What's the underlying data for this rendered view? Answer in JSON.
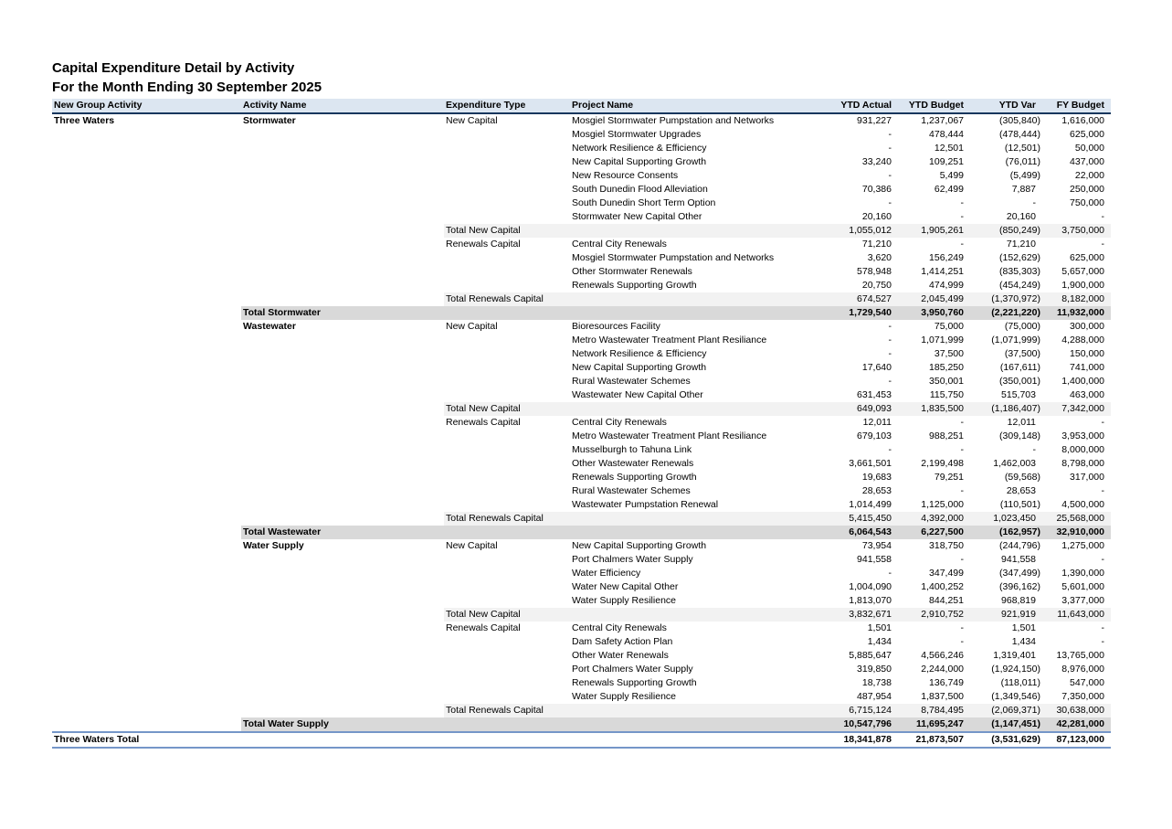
{
  "report": {
    "title": "Capital Expenditure Detail by Activity",
    "subtitle": "For the Month Ending 30 September 2025"
  },
  "colors": {
    "header_bg": "#dce6f1",
    "header_border": "#17365d",
    "subtotal_bg": "#f2f2f2",
    "activity_total_bg": "#d9d9d9",
    "grand_total_border": "#7596c8"
  },
  "table": {
    "columns": [
      {
        "key": "group-activity",
        "label": "New Group Activity",
        "align": "left"
      },
      {
        "key": "activity-name",
        "label": "Activity Name",
        "align": "left"
      },
      {
        "key": "expenditure-type",
        "label": "Expenditure Type",
        "align": "left"
      },
      {
        "key": "project-name",
        "label": "Project Name",
        "align": "left"
      },
      {
        "key": "ytd-actual",
        "label": "YTD Actual",
        "align": "right"
      },
      {
        "key": "ytd-budget",
        "label": "YTD Budget",
        "align": "right"
      },
      {
        "key": "ytd-var",
        "label": "YTD Var",
        "align": "right"
      },
      {
        "key": "fy-budget",
        "label": "FY Budget",
        "align": "right"
      }
    ],
    "rows": [
      {
        "type": "detail",
        "cells": [
          "Three Waters",
          "Stormwater",
          "New Capital",
          "Mosgiel Stormwater Pumpstation and Networks",
          "931,227",
          "1,237,067",
          "(305,840)",
          "1,616,000"
        ]
      },
      {
        "type": "detail",
        "cells": [
          "",
          "",
          "",
          "Mosgiel Stormwater Upgrades",
          "-",
          "478,444",
          "(478,444)",
          "625,000"
        ]
      },
      {
        "type": "detail",
        "cells": [
          "",
          "",
          "",
          "Network Resilience & Efficiency",
          "-",
          "12,501",
          "(12,501)",
          "50,000"
        ]
      },
      {
        "type": "detail",
        "cells": [
          "",
          "",
          "",
          "New Capital Supporting Growth",
          "33,240",
          "109,251",
          "(76,011)",
          "437,000"
        ]
      },
      {
        "type": "detail",
        "cells": [
          "",
          "",
          "",
          "New Resource Consents",
          "-",
          "5,499",
          "(5,499)",
          "22,000"
        ]
      },
      {
        "type": "detail",
        "cells": [
          "",
          "",
          "",
          "South Dunedin Flood Alleviation",
          "70,386",
          "62,499",
          "7,887",
          "250,000"
        ]
      },
      {
        "type": "detail",
        "cells": [
          "",
          "",
          "",
          "South Dunedin Short Term Option",
          "-",
          "-",
          "-",
          "750,000"
        ]
      },
      {
        "type": "detail",
        "cells": [
          "",
          "",
          "",
          "Stormwater New Capital Other",
          "20,160",
          "-",
          "20,160",
          "-"
        ]
      },
      {
        "type": "subtotal",
        "cells": [
          "",
          "",
          "Total New Capital",
          "",
          "1,055,012",
          "1,905,261",
          "(850,249)",
          "3,750,000"
        ]
      },
      {
        "type": "detail",
        "cells": [
          "",
          "",
          "Renewals Capital",
          "Central City Renewals",
          "71,210",
          "-",
          "71,210",
          "-"
        ]
      },
      {
        "type": "detail",
        "cells": [
          "",
          "",
          "",
          "Mosgiel Stormwater Pumpstation and Networks",
          "3,620",
          "156,249",
          "(152,629)",
          "625,000"
        ]
      },
      {
        "type": "detail",
        "cells": [
          "",
          "",
          "",
          "Other Stormwater Renewals",
          "578,948",
          "1,414,251",
          "(835,303)",
          "5,657,000"
        ]
      },
      {
        "type": "detail",
        "cells": [
          "",
          "",
          "",
          "Renewals Supporting Growth",
          "20,750",
          "474,999",
          "(454,249)",
          "1,900,000"
        ]
      },
      {
        "type": "subtotal",
        "cells": [
          "",
          "",
          "Total Renewals Capital",
          "",
          "674,527",
          "2,045,499",
          "(1,370,972)",
          "8,182,000"
        ]
      },
      {
        "type": "activity_total",
        "cells": [
          "",
          "Total Stormwater",
          "",
          "",
          "1,729,540",
          "3,950,760",
          "(2,221,220)",
          "11,932,000"
        ]
      },
      {
        "type": "detail",
        "cells": [
          "",
          "Wastewater",
          "New Capital",
          "Bioresources Facility",
          "-",
          "75,000",
          "(75,000)",
          "300,000"
        ]
      },
      {
        "type": "detail",
        "cells": [
          "",
          "",
          "",
          "Metro Wastewater Treatment Plant Resiliance",
          "-",
          "1,071,999",
          "(1,071,999)",
          "4,288,000"
        ]
      },
      {
        "type": "detail",
        "cells": [
          "",
          "",
          "",
          "Network Resilience & Efficiency",
          "-",
          "37,500",
          "(37,500)",
          "150,000"
        ]
      },
      {
        "type": "detail",
        "cells": [
          "",
          "",
          "",
          "New Capital Supporting Growth",
          "17,640",
          "185,250",
          "(167,611)",
          "741,000"
        ]
      },
      {
        "type": "detail",
        "cells": [
          "",
          "",
          "",
          "Rural Wastewater Schemes",
          "-",
          "350,001",
          "(350,001)",
          "1,400,000"
        ]
      },
      {
        "type": "detail",
        "cells": [
          "",
          "",
          "",
          "Wastewater New Capital Other",
          "631,453",
          "115,750",
          "515,703",
          "463,000"
        ]
      },
      {
        "type": "subtotal",
        "cells": [
          "",
          "",
          "Total New Capital",
          "",
          "649,093",
          "1,835,500",
          "(1,186,407)",
          "7,342,000"
        ]
      },
      {
        "type": "detail",
        "cells": [
          "",
          "",
          "Renewals Capital",
          "Central City Renewals",
          "12,011",
          "-",
          "12,011",
          "-"
        ]
      },
      {
        "type": "detail",
        "cells": [
          "",
          "",
          "",
          "Metro Wastewater Treatment Plant Resiliance",
          "679,103",
          "988,251",
          "(309,148)",
          "3,953,000"
        ]
      },
      {
        "type": "detail",
        "cells": [
          "",
          "",
          "",
          "Musselburgh to Tahuna Link",
          "-",
          "-",
          "-",
          "8,000,000"
        ]
      },
      {
        "type": "detail",
        "cells": [
          "",
          "",
          "",
          "Other Wastewater Renewals",
          "3,661,501",
          "2,199,498",
          "1,462,003",
          "8,798,000"
        ]
      },
      {
        "type": "detail",
        "cells": [
          "",
          "",
          "",
          "Renewals Supporting Growth",
          "19,683",
          "79,251",
          "(59,568)",
          "317,000"
        ]
      },
      {
        "type": "detail",
        "cells": [
          "",
          "",
          "",
          "Rural Wastewater Schemes",
          "28,653",
          "-",
          "28,653",
          "-"
        ]
      },
      {
        "type": "detail",
        "cells": [
          "",
          "",
          "",
          "Wastewater Pumpstation Renewal",
          "1,014,499",
          "1,125,000",
          "(110,501)",
          "4,500,000"
        ]
      },
      {
        "type": "subtotal",
        "cells": [
          "",
          "",
          "Total Renewals Capital",
          "",
          "5,415,450",
          "4,392,000",
          "1,023,450",
          "25,568,000"
        ]
      },
      {
        "type": "activity_total",
        "cells": [
          "",
          "Total Wastewater",
          "",
          "",
          "6,064,543",
          "6,227,500",
          "(162,957)",
          "32,910,000"
        ]
      },
      {
        "type": "detail",
        "cells": [
          "",
          "Water Supply",
          "New Capital",
          "New Capital Supporting Growth",
          "73,954",
          "318,750",
          "(244,796)",
          "1,275,000"
        ]
      },
      {
        "type": "detail",
        "cells": [
          "",
          "",
          "",
          "Port Chalmers Water Supply",
          "941,558",
          "-",
          "941,558",
          "-"
        ]
      },
      {
        "type": "detail",
        "cells": [
          "",
          "",
          "",
          "Water Efficiency",
          "-",
          "347,499",
          "(347,499)",
          "1,390,000"
        ]
      },
      {
        "type": "detail",
        "cells": [
          "",
          "",
          "",
          "Water New Capital Other",
          "1,004,090",
          "1,400,252",
          "(396,162)",
          "5,601,000"
        ]
      },
      {
        "type": "detail",
        "cells": [
          "",
          "",
          "",
          "Water Supply Resilience",
          "1,813,070",
          "844,251",
          "968,819",
          "3,377,000"
        ]
      },
      {
        "type": "subtotal",
        "cells": [
          "",
          "",
          "Total New Capital",
          "",
          "3,832,671",
          "2,910,752",
          "921,919",
          "11,643,000"
        ]
      },
      {
        "type": "detail",
        "cells": [
          "",
          "",
          "Renewals Capital",
          "Central City Renewals",
          "1,501",
          "-",
          "1,501",
          "-"
        ]
      },
      {
        "type": "detail",
        "cells": [
          "",
          "",
          "",
          "Dam Safety Action Plan",
          "1,434",
          "-",
          "1,434",
          "-"
        ]
      },
      {
        "type": "detail",
        "cells": [
          "",
          "",
          "",
          "Other Water Renewals",
          "5,885,647",
          "4,566,246",
          "1,319,401",
          "13,765,000"
        ]
      },
      {
        "type": "detail",
        "cells": [
          "",
          "",
          "",
          "Port Chalmers Water Supply",
          "319,850",
          "2,244,000",
          "(1,924,150)",
          "8,976,000"
        ]
      },
      {
        "type": "detail",
        "cells": [
          "",
          "",
          "",
          "Renewals Supporting Growth",
          "18,738",
          "136,749",
          "(118,011)",
          "547,000"
        ]
      },
      {
        "type": "detail",
        "cells": [
          "",
          "",
          "",
          "Water Supply Resilience",
          "487,954",
          "1,837,500",
          "(1,349,546)",
          "7,350,000"
        ]
      },
      {
        "type": "subtotal",
        "cells": [
          "",
          "",
          "Total Renewals Capital",
          "",
          "6,715,124",
          "8,784,495",
          "(2,069,371)",
          "30,638,000"
        ]
      },
      {
        "type": "activity_total",
        "cells": [
          "",
          "Total Water Supply",
          "",
          "",
          "10,547,796",
          "11,695,247",
          "(1,147,451)",
          "42,281,000"
        ]
      },
      {
        "type": "grand_total",
        "cells": [
          "Three Waters Total",
          "",
          "",
          "",
          "18,341,878",
          "21,873,507",
          "(3,531,629)",
          "87,123,000"
        ]
      }
    ]
  }
}
